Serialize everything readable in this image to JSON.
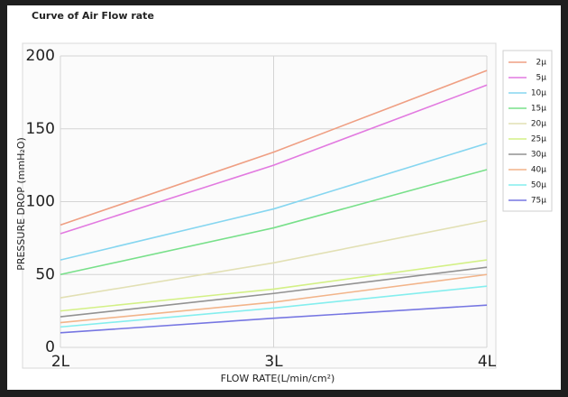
{
  "chart_data": {
    "type": "line",
    "title": "Curve of Air Flow rate",
    "x_label": "FLOW RATE(L/min/cm²)",
    "y_label": "PRESSURE DROP (mmH₂O)",
    "x": [
      2,
      3,
      4
    ],
    "xlim": [
      2,
      4
    ],
    "xticks": [
      {
        "value": 2,
        "label": "2L"
      },
      {
        "value": 3,
        "label": "3L"
      },
      {
        "value": 4,
        "label": "4L"
      }
    ],
    "ylim": [
      0,
      200
    ],
    "yticks": [
      0,
      50,
      100,
      150,
      200
    ],
    "grid": true,
    "legend": "right",
    "series": [
      {
        "name": "2μ",
        "color": "#ef9f83",
        "values": [
          84,
          134,
          190
        ]
      },
      {
        "name": "5μ",
        "color": "#e27ae0",
        "values": [
          78,
          125,
          180
        ]
      },
      {
        "name": "10μ",
        "color": "#86d6f0",
        "values": [
          60,
          95,
          140
        ]
      },
      {
        "name": "15μ",
        "color": "#78e08a",
        "values": [
          50,
          82,
          122
        ]
      },
      {
        "name": "20μ",
        "color": "#e2e0b4",
        "values": [
          34,
          58,
          87
        ]
      },
      {
        "name": "25μ",
        "color": "#d3f086",
        "values": [
          25,
          40,
          60
        ]
      },
      {
        "name": "30μ",
        "color": "#929292",
        "values": [
          21,
          37,
          55
        ]
      },
      {
        "name": "40μ",
        "color": "#f2b48a",
        "values": [
          17,
          31,
          50
        ]
      },
      {
        "name": "50μ",
        "color": "#84eeee",
        "values": [
          14,
          27,
          42
        ]
      },
      {
        "name": "75μ",
        "color": "#7676e2",
        "values": [
          10,
          20,
          29
        ]
      }
    ]
  }
}
